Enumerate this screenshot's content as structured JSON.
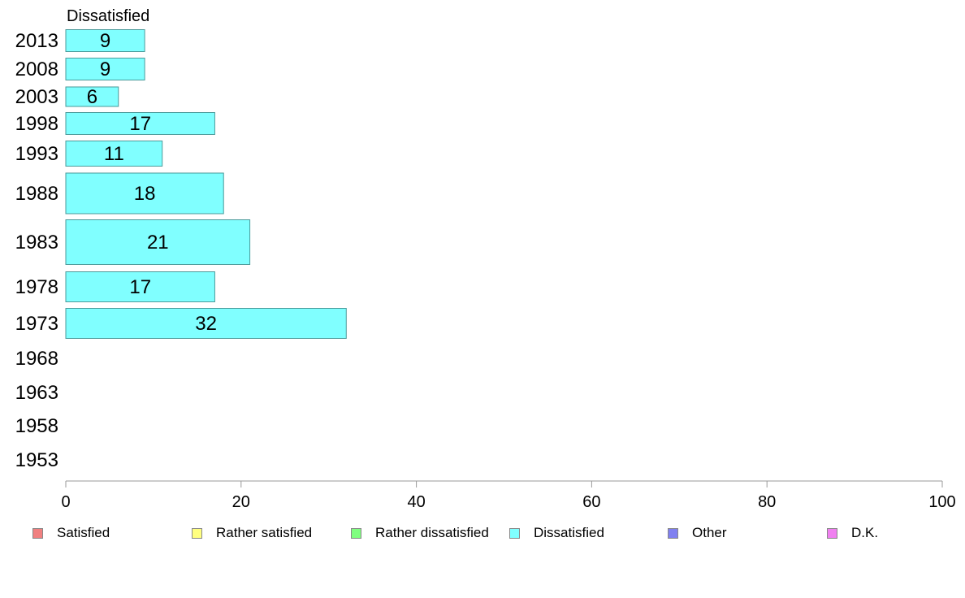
{
  "chart_data": {
    "type": "bar",
    "orientation": "horizontal",
    "title": "Dissatisfied",
    "categories": [
      "2013",
      "2008",
      "2003",
      "1998",
      "1993",
      "1988",
      "1983",
      "1978",
      "1973",
      "1968",
      "1963",
      "1958",
      "1953"
    ],
    "values": [
      9,
      9,
      6,
      17,
      11,
      18,
      21,
      17,
      32,
      null,
      null,
      null,
      null
    ],
    "bar_value_labels": [
      "9",
      "9",
      "6",
      "17",
      "11",
      "18",
      "21",
      "17",
      "32",
      "",
      "",
      "",
      ""
    ],
    "bar_color": "#80FFFF",
    "bar_border_color": "#4a9a9a",
    "xlim": [
      0,
      100
    ],
    "x_ticks": [
      "0",
      "20",
      "40",
      "60",
      "80",
      "100"
    ],
    "grid": false,
    "legend_position": "bottom",
    "legend": [
      {
        "label": "Satisfied",
        "color": "#F08080"
      },
      {
        "label": "Rather satisfied",
        "color": "#FFFF80"
      },
      {
        "label": "Rather dissatisfied",
        "color": "#80FF80"
      },
      {
        "label": "Dissatisfied",
        "color": "#80FFFF"
      },
      {
        "label": "Other",
        "color": "#8080F0"
      },
      {
        "label": "D.K.",
        "color": "#F080F0"
      }
    ]
  }
}
